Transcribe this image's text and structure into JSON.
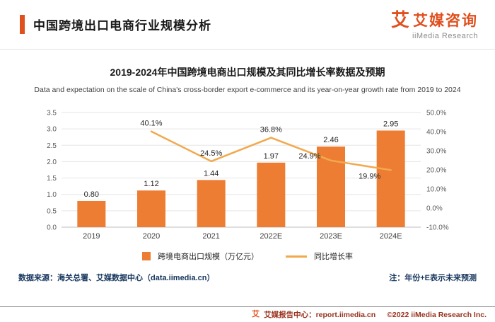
{
  "theme": {
    "accent": "#E0501E",
    "bar_color": "#ED7D33",
    "line_color": "#F2A94E",
    "source_text_color": "#17375E",
    "footer_text_color": "#99321E"
  },
  "header": {
    "title": "中国跨境出口电商行业规模分析",
    "logo": {
      "icon_glyph": "艾",
      "brand_cn": "艾媒咨询",
      "brand_en": "iiMedia Research"
    }
  },
  "chart": {
    "title": "2019-2024年中国跨境电商出口规模及其同比增长率数据及预期",
    "subtitle": "Data and expectation on the scale of China's cross-border export e-commerce and its year-on-year growth rate from 2019 to 2024"
  },
  "chart_data": {
    "type": "bar+line combo",
    "categories": [
      "2019",
      "2020",
      "2021",
      "2022E",
      "2023E",
      "2024E"
    ],
    "series": [
      {
        "name": "跨境电商出口规模（万亿元）",
        "type": "bar",
        "axis": "left",
        "color": "#ED7D33",
        "values": [
          0.8,
          1.12,
          1.44,
          1.97,
          2.46,
          2.95
        ],
        "value_labels": [
          "0.80",
          "1.12",
          "1.44",
          "1.97",
          "2.46",
          "2.95"
        ]
      },
      {
        "name": "同比增长率",
        "type": "line",
        "axis": "right",
        "color": "#F2A94E",
        "values": [
          null,
          40.1,
          24.5,
          36.8,
          24.9,
          19.9
        ],
        "value_labels": [
          "",
          "40.1%",
          "24.5%",
          "36.8%",
          "24.9%",
          "19.9%"
        ]
      }
    ],
    "left_axis": {
      "min": 0,
      "max": 3.5,
      "step": 0.5,
      "ticks": [
        "0.0",
        "0.5",
        "1.0",
        "1.5",
        "2.0",
        "2.5",
        "3.0",
        "3.5"
      ]
    },
    "right_axis": {
      "min": -10,
      "max": 50,
      "step": 10,
      "ticks": [
        "-10.0%",
        "0.0%",
        "10.0%",
        "20.0%",
        "30.0%",
        "40.0%",
        "50.0%"
      ]
    },
    "grid": true,
    "legend_position": "bottom"
  },
  "meta": {
    "source": "数据来源：海关总署、艾媒数据中心（data.iimedia.cn）",
    "note": "注：年份+E表示未来预测"
  },
  "footer": {
    "logo_glyph": "艾",
    "report_center": "艾媒报告中心：report.iimedia.cn",
    "copyright": "©2022  iiMedia Research Inc."
  }
}
